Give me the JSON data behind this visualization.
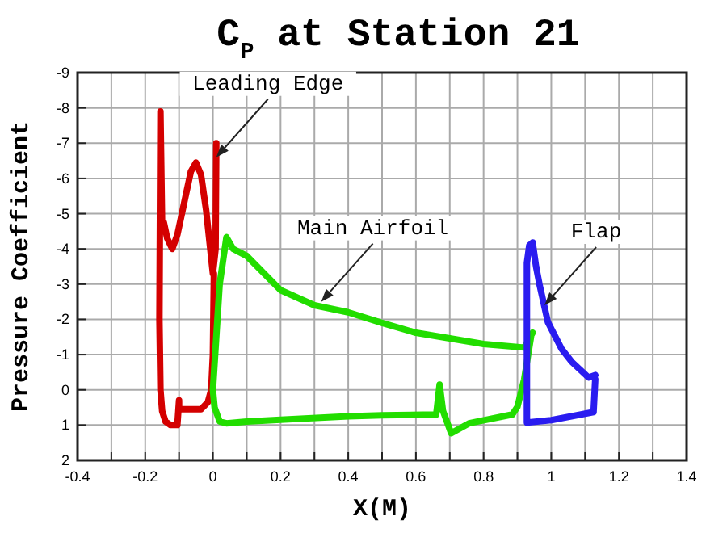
{
  "chart_data": {
    "type": "line",
    "title": "C$_{P}$ at Station 21",
    "xlabel": "X(M)",
    "ylabel": "Pressure Coefficient",
    "xlim": [
      -0.4,
      1.4
    ],
    "ylim": [
      2,
      -9
    ],
    "xticks": [
      -0.4,
      {
        "value": -0.3,
        "label": null
      },
      -0.2,
      {
        "value": -0.1,
        "label": null
      },
      0,
      {
        "value": 0.1,
        "label": null
      },
      0.2,
      {
        "value": 0.3,
        "label": null
      },
      0.4,
      {
        "value": 0.5,
        "label": null
      },
      0.6,
      {
        "value": 0.7,
        "label": null
      },
      0.8,
      {
        "value": 0.9,
        "label": null
      },
      1,
      {
        "value": 1.1,
        "label": null
      },
      1.2,
      {
        "value": 1.3,
        "label": null
      },
      1.4
    ],
    "yticks": [
      -9,
      -8,
      -7,
      -6,
      -5,
      -4,
      -3,
      -2,
      -1,
      0,
      1,
      2
    ],
    "grid": true,
    "marker": "none",
    "line_style": "solid",
    "series": [
      {
        "color": "#d40000",
        "x": [
          0.01,
          0.008,
          0.0,
          -0.01,
          -0.02,
          -0.035,
          -0.05,
          -0.065,
          -0.085,
          -0.105,
          -0.12,
          -0.135,
          -0.145,
          -0.15,
          -0.155,
          -0.158,
          -0.155,
          -0.15,
          -0.14,
          -0.125,
          -0.105,
          -0.1,
          -0.1,
          -0.07,
          -0.035,
          -0.015,
          -0.005,
          0.0,
          0.003
        ],
        "values": [
          -7.0,
          -4.0,
          -3.3,
          -4.2,
          -5.1,
          -6.1,
          -6.45,
          -6.2,
          -5.3,
          -4.4,
          -4.0,
          -4.3,
          -4.75,
          -4.6,
          -7.9,
          -2.0,
          0.0,
          0.6,
          0.9,
          1.0,
          1.0,
          0.3,
          0.55,
          0.55,
          0.55,
          0.35,
          0.0,
          -1.0,
          -3.3
        ]
      },
      {
        "color": "#22dd00",
        "x": [
          0.945,
          0.92,
          0.8,
          0.6,
          0.5,
          0.4,
          0.3,
          0.2,
          0.1,
          0.06,
          0.04,
          0.02,
          0.01,
          0.0,
          0.005,
          0.02,
          0.04,
          0.1,
          0.2,
          0.4,
          0.5,
          0.66,
          0.67,
          0.68,
          0.704,
          0.757,
          0.885,
          0.9,
          0.92,
          0.94
        ],
        "values": [
          -1.62,
          -1.2,
          -1.3,
          -1.62,
          -1.9,
          -2.2,
          -2.4,
          -2.83,
          -3.8,
          -4.0,
          -4.33,
          -3.0,
          -1.5,
          0.0,
          0.5,
          0.9,
          0.95,
          0.9,
          0.85,
          0.75,
          0.72,
          0.7,
          -0.15,
          0.6,
          1.23,
          0.95,
          0.7,
          0.48,
          -0.3,
          -1.5
        ]
      },
      {
        "color": "#2a1cf0",
        "x": [
          1.13,
          1.11,
          1.06,
          1.03,
          0.99,
          0.965,
          0.955,
          0.945,
          0.935,
          0.928,
          0.928,
          1.0,
          1.125,
          1.13
        ],
        "values": [
          -0.42,
          -0.35,
          -0.8,
          -1.17,
          -1.92,
          -3.0,
          -3.5,
          -4.18,
          -4.1,
          -3.6,
          0.93,
          0.86,
          0.63,
          -0.3
        ]
      }
    ],
    "annotations": [
      {
        "text": "Leading Edge",
        "x": 0.01,
        "y": -6.6
      },
      {
        "text": "Main Airfoil",
        "x": 0.32,
        "y": -2.5
      },
      {
        "text": "Flap",
        "x": 0.98,
        "y": -2.4
      }
    ]
  }
}
